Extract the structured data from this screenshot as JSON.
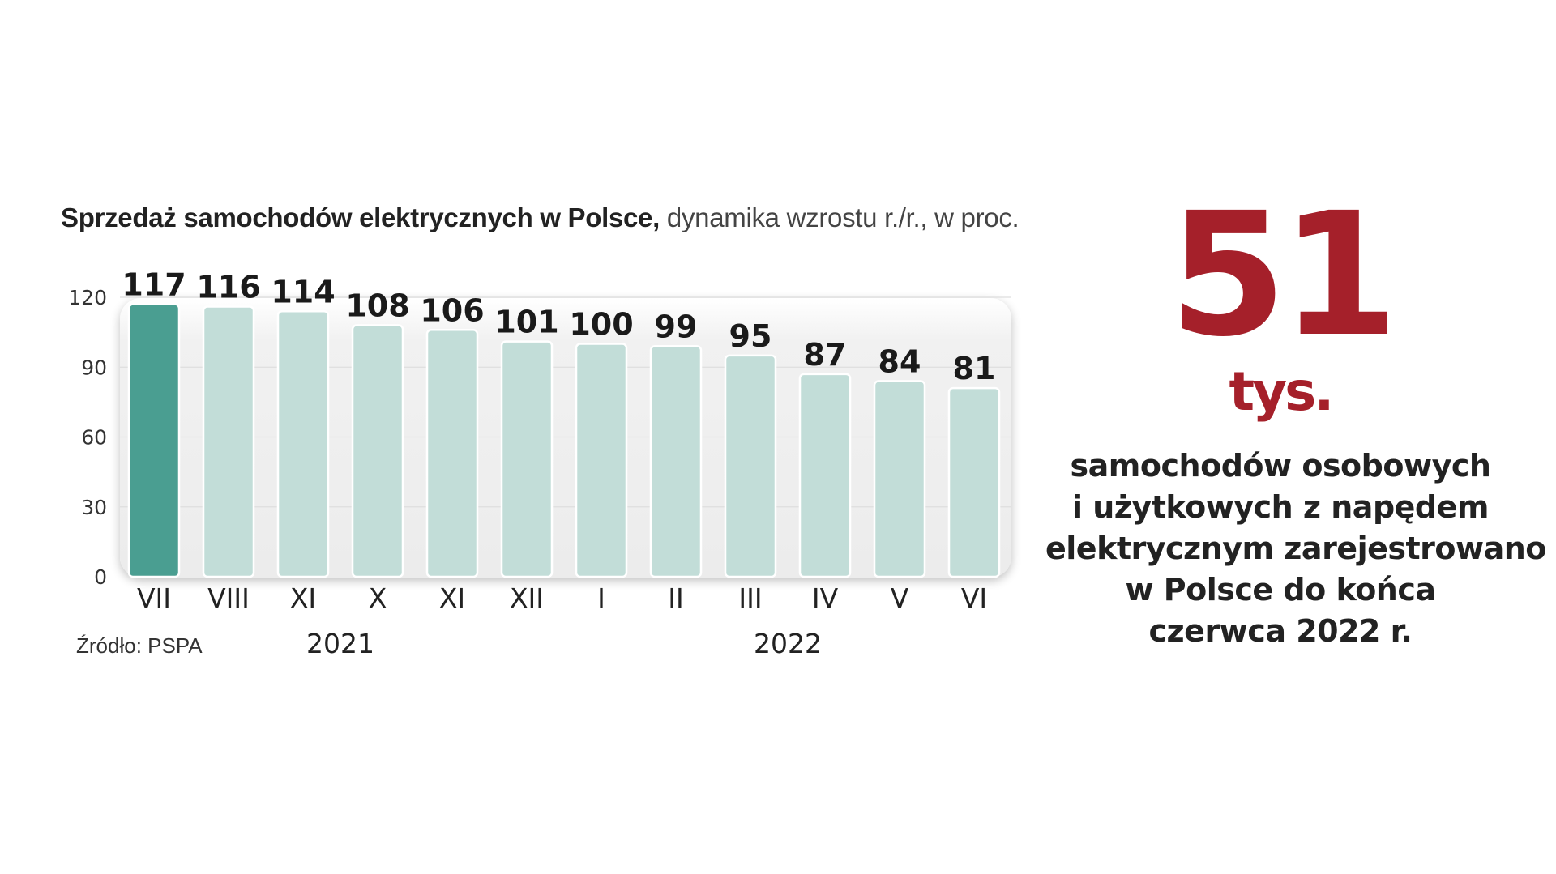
{
  "chart_data": {
    "type": "bar",
    "title": "Sprzedaż samochodów elektrycznych w Polsce,",
    "subtitle": "dynamika wzrostu r./r., w proc.",
    "categories": [
      "VII",
      "VIII",
      "XI",
      "X",
      "XI",
      "XII",
      "I",
      "II",
      "III",
      "IV",
      "V",
      "VI"
    ],
    "values": [
      117,
      116,
      114,
      108,
      106,
      101,
      100,
      99,
      95,
      87,
      84,
      81
    ],
    "value_labels": [
      "117",
      "116",
      "114",
      "108",
      "106",
      "101",
      "100",
      "99",
      "95",
      "87",
      "84",
      "81"
    ],
    "highlight_index": 0,
    "yticks": [
      "0",
      "30",
      "60",
      "90",
      "120"
    ],
    "ytick_values": [
      0,
      30,
      60,
      90,
      120
    ],
    "ylim": [
      0,
      120
    ],
    "grid": true,
    "year_groups": [
      {
        "label": "2021",
        "from_index": 0,
        "to_index": 5
      },
      {
        "label": "2022",
        "from_index": 6,
        "to_index": 11
      }
    ],
    "colors": {
      "highlight": "#4a9e91",
      "bar": "#c2ddd8",
      "panel": "#efefef"
    }
  },
  "source": "Źródło: PSPA",
  "highlight": {
    "number": "51",
    "unit": "tys.",
    "description_lines": [
      "samochodów osobowych",
      "i użytkowych z napędem",
      "elektrycznym zarejestrowano",
      "w Polsce do końca",
      "czerwca 2022 r."
    ],
    "color": "#a5202a"
  }
}
